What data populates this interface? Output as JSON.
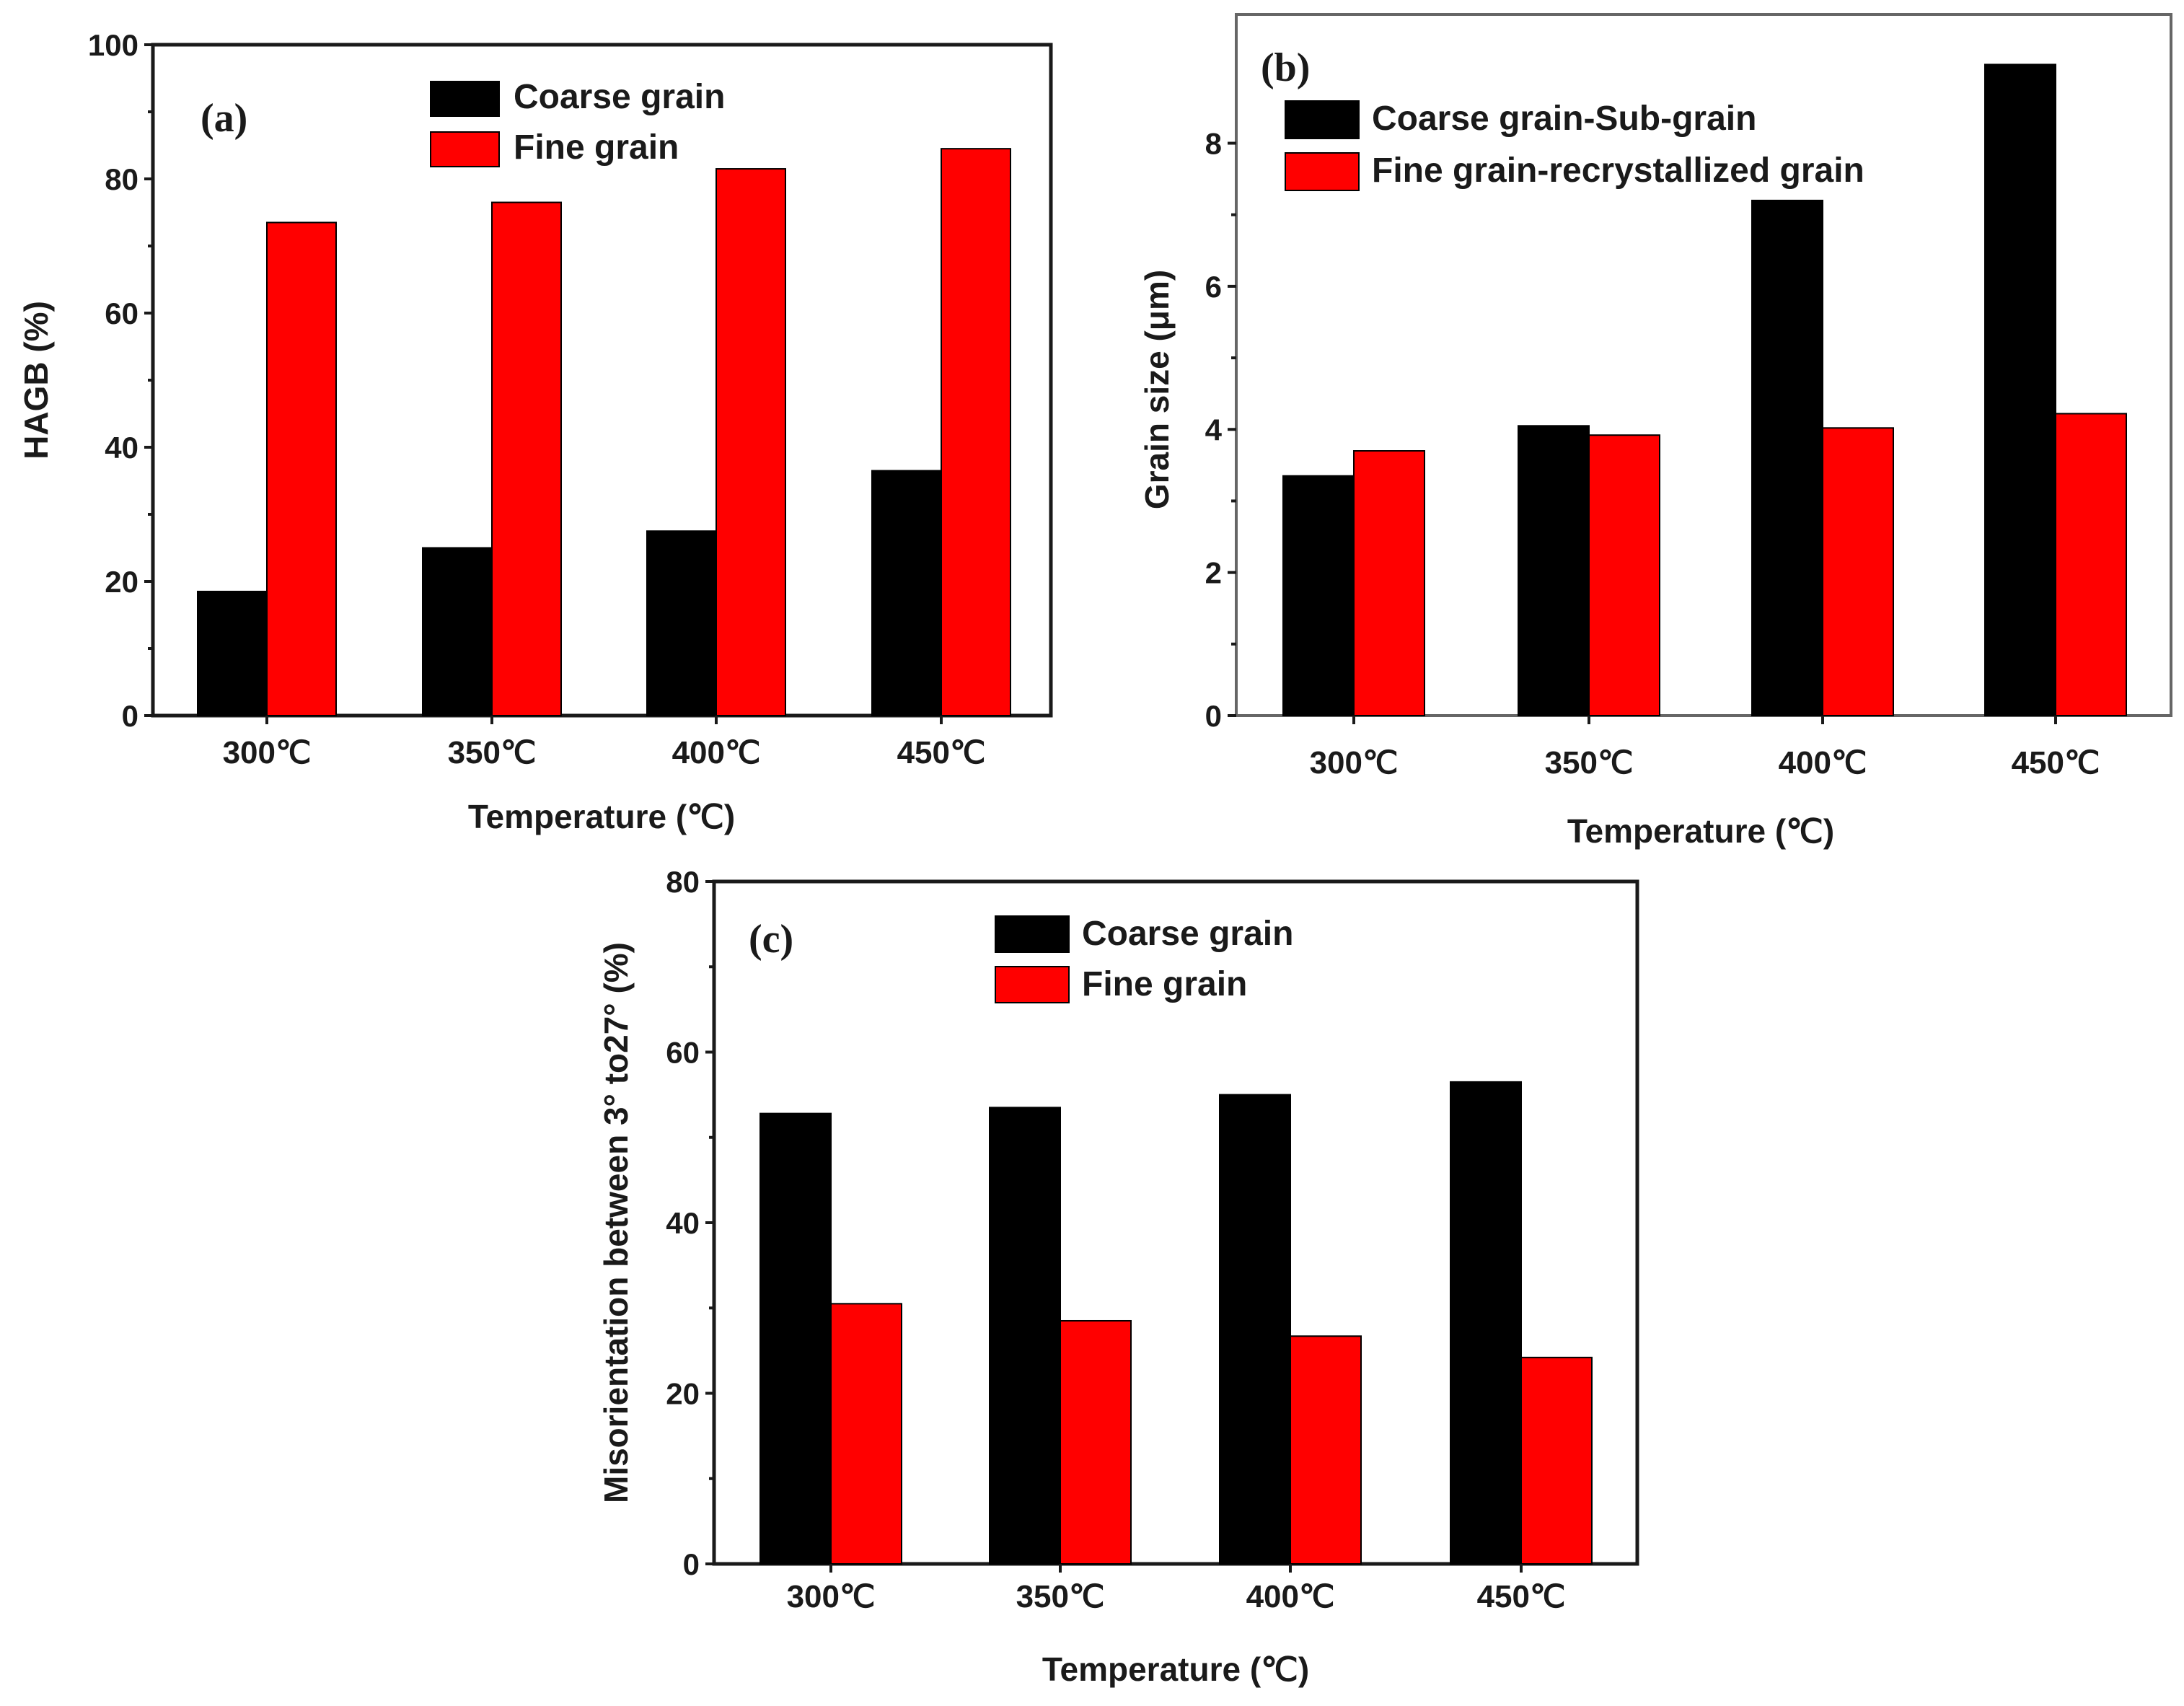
{
  "chart_data": [
    {
      "id": "a",
      "type": "bar",
      "panel_label": "(a)",
      "categories": [
        "300℃",
        "350℃",
        "400℃",
        "450℃"
      ],
      "series": [
        {
          "name": "Coarse grain",
          "color": "#000000",
          "values": [
            18.5,
            25,
            27.5,
            36.5
          ]
        },
        {
          "name": "Fine grain",
          "color": "#ff0000",
          "values": [
            73.5,
            76.5,
            81.5,
            84.5
          ]
        }
      ],
      "xlabel": "Temperature (℃)",
      "ylabel": "HAGB (%)",
      "ylim": [
        0,
        100
      ],
      "yticks": [
        "0",
        "20",
        "40",
        "60",
        "80",
        "100"
      ],
      "legend_position": "top-right"
    },
    {
      "id": "b",
      "type": "bar",
      "panel_label": "(b)",
      "categories": [
        "300℃",
        "350℃",
        "400℃",
        "450℃"
      ],
      "series": [
        {
          "name": "Coarse grain-Sub-grain",
          "color": "#000000",
          "values": [
            3.35,
            4.05,
            7.2,
            9.1
          ]
        },
        {
          "name": "Fine grain-recrystallized grain",
          "color": "#ff0000",
          "values": [
            3.7,
            3.92,
            4.02,
            4.22
          ]
        }
      ],
      "xlabel": "Temperature (℃)",
      "ylabel": "Grain size (μm)",
      "ylim": [
        0,
        9.8
      ],
      "yticks": [
        "0",
        "2",
        "4",
        "6",
        "8"
      ],
      "legend_position": "top-left"
    },
    {
      "id": "c",
      "type": "bar",
      "panel_label": "(c)",
      "categories": [
        "300℃",
        "350℃",
        "400℃",
        "450℃"
      ],
      "series": [
        {
          "name": "Coarse grain",
          "color": "#000000",
          "values": [
            52.8,
            53.5,
            55,
            56.5
          ]
        },
        {
          "name": "Fine grain",
          "color": "#ff0000",
          "values": [
            30.5,
            28.5,
            26.7,
            24.2
          ]
        }
      ],
      "xlabel": "Temperature (℃)",
      "ylabel": "Misorientation between 3° to27° (%)",
      "ylim": [
        0,
        80
      ],
      "yticks": [
        "0",
        "20",
        "40",
        "60",
        "80"
      ],
      "legend_position": "top-left"
    }
  ]
}
